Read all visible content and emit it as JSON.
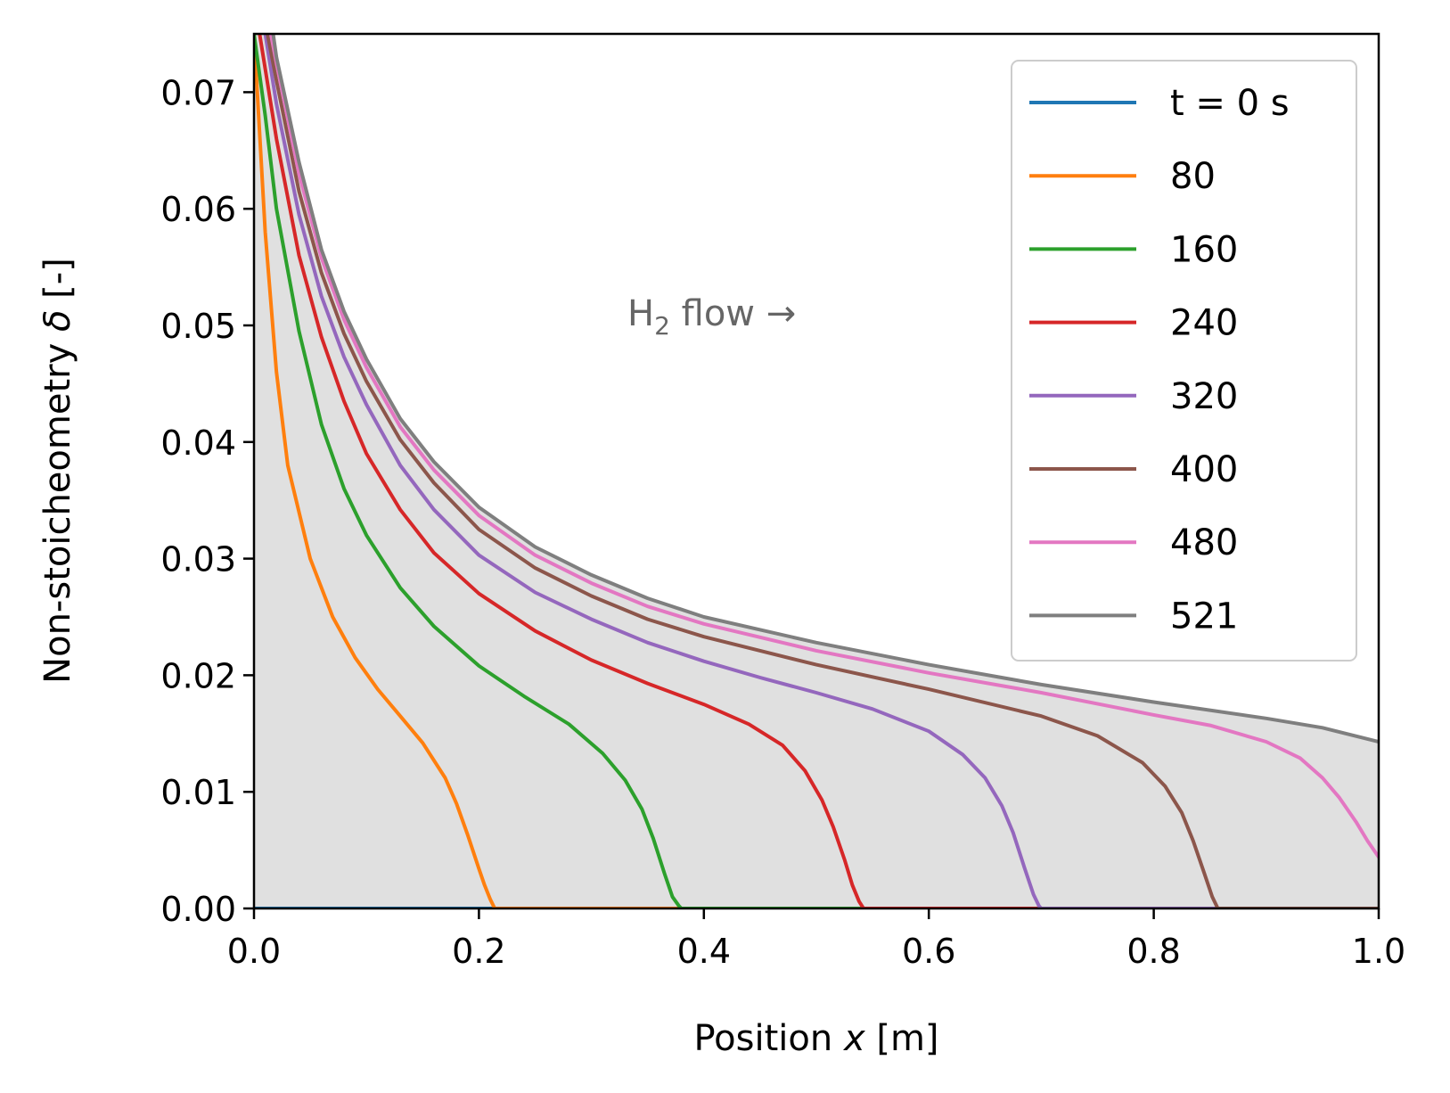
{
  "chart_data": {
    "type": "line",
    "xlabel_prefix": "Position ",
    "xlabel_var": "x",
    "xlabel_suffix": " [m]",
    "ylabel_prefix": "Non-stoicheometry ",
    "ylabel_var": "δ",
    "ylabel_suffix": " [-]",
    "xlim": [
      0.0,
      1.0
    ],
    "ylim": [
      0.0,
      0.075
    ],
    "x_ticks": [
      "0.0",
      "0.2",
      "0.4",
      "0.6",
      "0.8",
      "1.0"
    ],
    "y_ticks": [
      "0.00",
      "0.01",
      "0.02",
      "0.03",
      "0.04",
      "0.05",
      "0.06",
      "0.07"
    ],
    "annotation": {
      "prefix": "H",
      "sub": "2",
      "suffix": " flow →"
    },
    "fill_color": "#e0e0e0",
    "legend_position": "upper right",
    "series": [
      {
        "name": "t = 0 s",
        "color": "#1f77b4",
        "x": [
          0.0,
          1.0
        ],
        "y": [
          0.0,
          0.0
        ]
      },
      {
        "name": "80",
        "color": "#ff7f0e",
        "x": [
          0.0,
          0.01,
          0.02,
          0.03,
          0.05,
          0.07,
          0.09,
          0.11,
          0.13,
          0.15,
          0.17,
          0.18,
          0.19,
          0.2,
          0.205,
          0.21,
          0.214,
          1.0
        ],
        "y": [
          0.075,
          0.058,
          0.046,
          0.038,
          0.03,
          0.025,
          0.0215,
          0.0188,
          0.0165,
          0.0142,
          0.0112,
          0.009,
          0.0063,
          0.0034,
          0.002,
          0.0008,
          0.0,
          0.0
        ]
      },
      {
        "name": "160",
        "color": "#2ca02c",
        "x": [
          0.0,
          0.01,
          0.02,
          0.04,
          0.06,
          0.08,
          0.1,
          0.13,
          0.16,
          0.2,
          0.24,
          0.28,
          0.31,
          0.33,
          0.345,
          0.355,
          0.365,
          0.372,
          0.378,
          0.38,
          1.0
        ],
        "y": [
          0.075,
          0.068,
          0.06,
          0.0495,
          0.0415,
          0.036,
          0.032,
          0.0275,
          0.0242,
          0.0208,
          0.0182,
          0.0158,
          0.0133,
          0.011,
          0.0085,
          0.006,
          0.003,
          0.001,
          0.0002,
          0.0,
          0.0
        ]
      },
      {
        "name": "240",
        "color": "#d62728",
        "x": [
          0.005,
          0.01,
          0.02,
          0.04,
          0.06,
          0.08,
          0.1,
          0.13,
          0.16,
          0.2,
          0.25,
          0.3,
          0.35,
          0.4,
          0.44,
          0.47,
          0.49,
          0.505,
          0.515,
          0.525,
          0.532,
          0.538,
          0.542,
          1.0
        ],
        "y": [
          0.075,
          0.072,
          0.066,
          0.056,
          0.049,
          0.0435,
          0.039,
          0.0342,
          0.0305,
          0.027,
          0.0238,
          0.0213,
          0.0193,
          0.0175,
          0.0158,
          0.014,
          0.0118,
          0.0093,
          0.007,
          0.0042,
          0.002,
          0.0006,
          0.0,
          0.0
        ]
      },
      {
        "name": "320",
        "color": "#9467bd",
        "x": [
          0.01,
          0.02,
          0.04,
          0.06,
          0.08,
          0.1,
          0.13,
          0.16,
          0.2,
          0.25,
          0.3,
          0.35,
          0.4,
          0.45,
          0.5,
          0.55,
          0.6,
          0.63,
          0.65,
          0.665,
          0.675,
          0.685,
          0.693,
          0.698,
          0.7,
          1.0
        ],
        "y": [
          0.075,
          0.069,
          0.0595,
          0.0525,
          0.0473,
          0.0432,
          0.038,
          0.0342,
          0.0303,
          0.0271,
          0.0248,
          0.0228,
          0.0212,
          0.0198,
          0.0185,
          0.0171,
          0.0152,
          0.0132,
          0.0112,
          0.0088,
          0.0065,
          0.0035,
          0.0012,
          0.0002,
          0.0,
          0.0
        ]
      },
      {
        "name": "400",
        "color": "#8c564b",
        "x": [
          0.012,
          0.02,
          0.04,
          0.06,
          0.08,
          0.1,
          0.13,
          0.16,
          0.2,
          0.25,
          0.3,
          0.35,
          0.4,
          0.5,
          0.6,
          0.7,
          0.75,
          0.79,
          0.81,
          0.825,
          0.835,
          0.845,
          0.852,
          0.857,
          1.0
        ],
        "y": [
          0.075,
          0.071,
          0.0615,
          0.0545,
          0.0493,
          0.0452,
          0.0402,
          0.0365,
          0.0325,
          0.0292,
          0.0268,
          0.0248,
          0.0233,
          0.0209,
          0.0188,
          0.0165,
          0.0148,
          0.0125,
          0.0105,
          0.0082,
          0.0058,
          0.003,
          0.001,
          0.0,
          0.0
        ]
      },
      {
        "name": "480",
        "color": "#e377c2",
        "x": [
          0.015,
          0.02,
          0.04,
          0.06,
          0.08,
          0.1,
          0.13,
          0.16,
          0.2,
          0.25,
          0.3,
          0.35,
          0.4,
          0.5,
          0.6,
          0.7,
          0.8,
          0.85,
          0.9,
          0.93,
          0.95,
          0.965,
          0.98,
          0.99,
          1.0
        ],
        "y": [
          0.075,
          0.0725,
          0.063,
          0.0558,
          0.0505,
          0.0464,
          0.0413,
          0.0376,
          0.0337,
          0.0303,
          0.0279,
          0.0259,
          0.0244,
          0.0221,
          0.0202,
          0.0185,
          0.0166,
          0.0157,
          0.0143,
          0.0129,
          0.0112,
          0.0095,
          0.0074,
          0.0058,
          0.0044
        ]
      },
      {
        "name": "521",
        "color": "#7f7f7f",
        "x": [
          0.017,
          0.02,
          0.04,
          0.06,
          0.08,
          0.1,
          0.13,
          0.16,
          0.2,
          0.25,
          0.3,
          0.35,
          0.4,
          0.5,
          0.6,
          0.7,
          0.8,
          0.9,
          0.95,
          1.0
        ],
        "y": [
          0.075,
          0.073,
          0.064,
          0.0565,
          0.0512,
          0.0471,
          0.042,
          0.0383,
          0.0344,
          0.031,
          0.0286,
          0.0266,
          0.025,
          0.0228,
          0.0209,
          0.0192,
          0.0177,
          0.0163,
          0.0155,
          0.0143
        ]
      }
    ]
  }
}
